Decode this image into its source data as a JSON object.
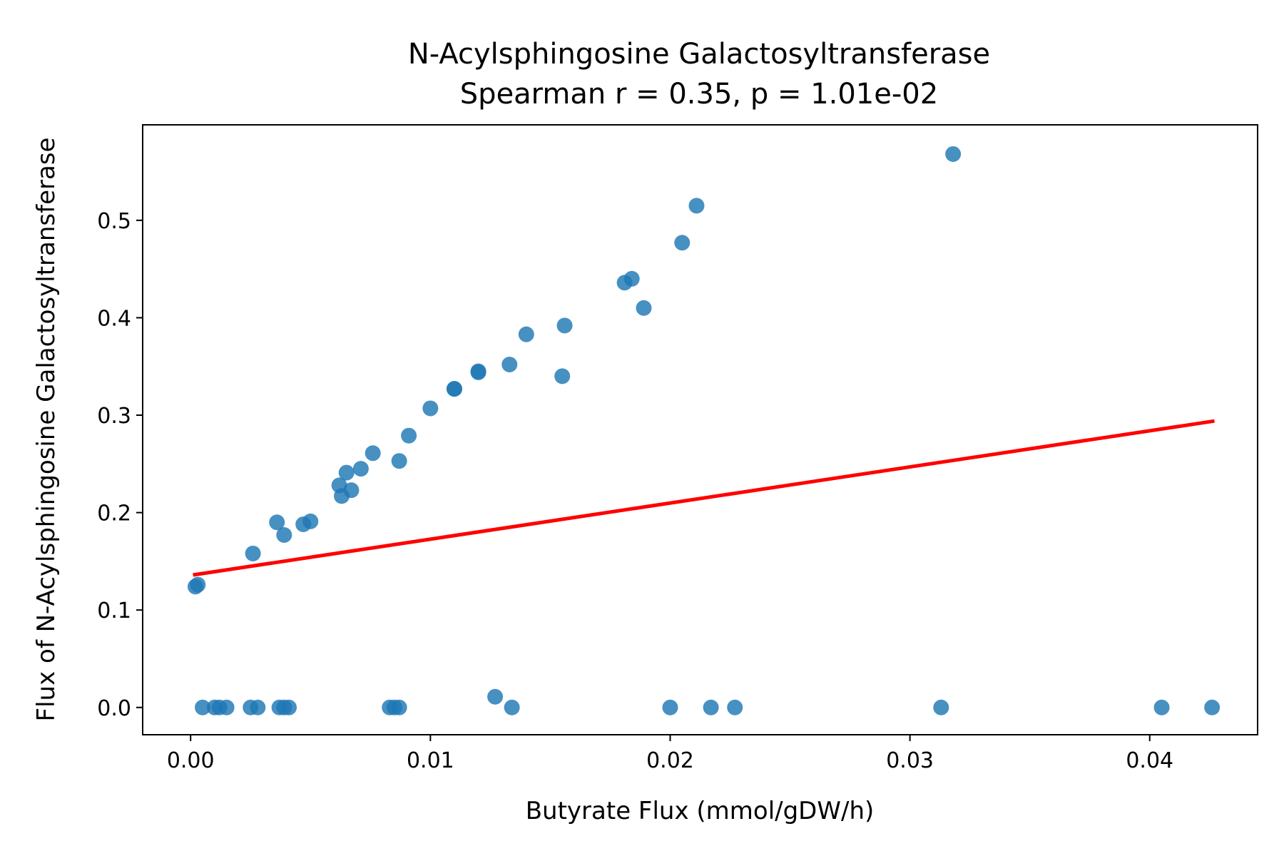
{
  "chart_data": {
    "type": "scatter",
    "title": "N-Acylsphingosine Galactosyltransferase",
    "subtitle": "Spearman r = 0.35, p = 1.01e-02",
    "xlabel": "Butyrate Flux (mmol/gDW/h)",
    "ylabel": "Flux of N-Acylsphingosine Galactosyltransferase",
    "xlim": [
      -0.002,
      0.0445
    ],
    "ylim": [
      -0.028,
      0.598
    ],
    "xticks": [
      0.0,
      0.01,
      0.02,
      0.03,
      0.04
    ],
    "xtick_labels": [
      "0.00",
      "0.01",
      "0.02",
      "0.03",
      "0.04"
    ],
    "yticks": [
      0.0,
      0.1,
      0.2,
      0.3,
      0.4,
      0.5
    ],
    "ytick_labels": [
      "0.0",
      "0.1",
      "0.2",
      "0.3",
      "0.4",
      "0.5"
    ],
    "grid": false,
    "colors": {
      "points": "#1f77b4",
      "fit_line": "#ff0000"
    },
    "series": [
      {
        "x": [
          0.0002,
          0.0003,
          0.0026,
          0.0036,
          0.0039,
          0.0047,
          0.005,
          0.0062,
          0.0063,
          0.0065,
          0.0067,
          0.0071,
          0.0076,
          0.0087,
          0.0091,
          0.01,
          0.011,
          0.011,
          0.012,
          0.012,
          0.0133,
          0.014,
          0.0155,
          0.0156,
          0.0181,
          0.0184,
          0.0189,
          0.0205,
          0.0211,
          0.0318,
          0.0005,
          0.001,
          0.0012,
          0.0015,
          0.0025,
          0.0028,
          0.0037,
          0.0039,
          0.0041,
          0.0083,
          0.0085,
          0.0087,
          0.0127,
          0.0134,
          0.02,
          0.0217,
          0.0227,
          0.0313,
          0.0405,
          0.0426
        ],
        "y": [
          0.124,
          0.126,
          0.158,
          0.19,
          0.177,
          0.188,
          0.191,
          0.228,
          0.217,
          0.241,
          0.223,
          0.245,
          0.261,
          0.253,
          0.279,
          0.307,
          0.327,
          0.327,
          0.344,
          0.345,
          0.352,
          0.383,
          0.34,
          0.392,
          0.436,
          0.44,
          0.41,
          0.477,
          0.515,
          0.568,
          0.0,
          0.0,
          0.0,
          0.0,
          0.0,
          0.0,
          0.0,
          0.0,
          0.0,
          0.0,
          0.0,
          0.0,
          0.011,
          0.0,
          0.0,
          0.0,
          0.0,
          0.0,
          0.0,
          0.0
        ]
      }
    ],
    "fit_line": {
      "x": [
        0.0001,
        0.0427
      ],
      "y": [
        0.136,
        0.294
      ]
    }
  }
}
